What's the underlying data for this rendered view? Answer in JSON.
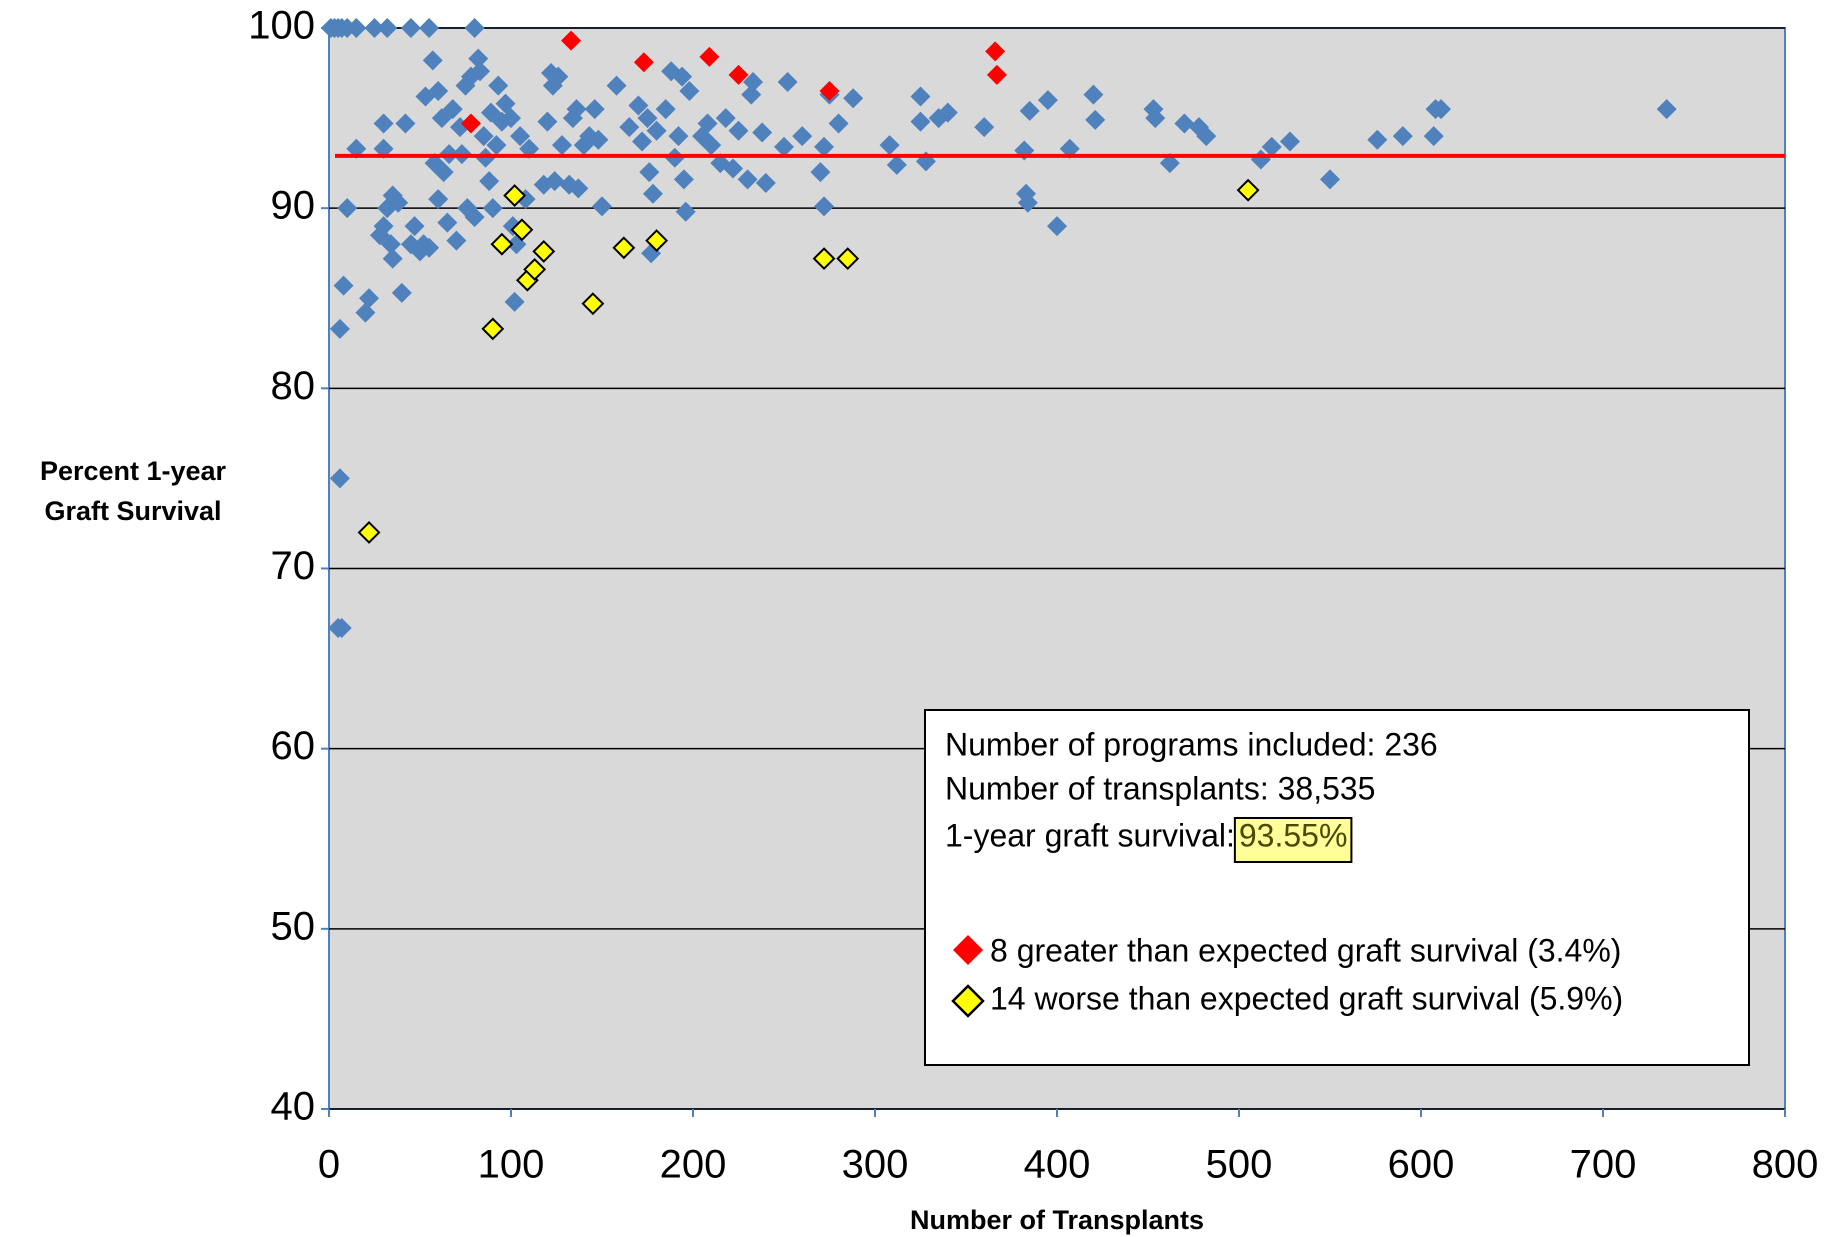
{
  "chart_data": {
    "type": "scatter",
    "y_label_lines": [
      "Percent 1-year",
      "Graft Survival"
    ],
    "x_label": "Number of Transplants",
    "xlim": [
      0,
      800
    ],
    "xticks": [
      0,
      100,
      200,
      300,
      400,
      500,
      600,
      700,
      800
    ],
    "ylim": [
      40,
      100
    ],
    "yticks": [
      40,
      50,
      60,
      70,
      80,
      90,
      100
    ],
    "grid": true,
    "reference_line": {
      "value": 92.9,
      "color": "#ff0000"
    },
    "annotation": {
      "lines": [
        "Number of programs included: 236",
        "Number of transplants: 38,535",
        "1-year graft survival: "
      ],
      "highlight": "93.55%"
    },
    "series": [
      {
        "color": "#4f81bd",
        "x": [
          1,
          3,
          5,
          7,
          10,
          15,
          25,
          32,
          45,
          55,
          80,
          5,
          7,
          6,
          6,
          8,
          20,
          22,
          40,
          10,
          15,
          30,
          30,
          28,
          30,
          32,
          34,
          35,
          35,
          38,
          42,
          45,
          47,
          50,
          52,
          53,
          55,
          57,
          58,
          60,
          60,
          62,
          63,
          65,
          66,
          68,
          70,
          72,
          73,
          75,
          76,
          78,
          80,
          82,
          83,
          85,
          86,
          88,
          89,
          90,
          92,
          93,
          95,
          97,
          100,
          101,
          102,
          103,
          105,
          108,
          110,
          118,
          120,
          122,
          123,
          124,
          126,
          128,
          132,
          134,
          136,
          137,
          140,
          143,
          146,
          148,
          150,
          158,
          165,
          170,
          172,
          175,
          176,
          177,
          178,
          180,
          185,
          188,
          190,
          192,
          194,
          195,
          196,
          198,
          205,
          208,
          210,
          215,
          218,
          222,
          225,
          230,
          232,
          233,
          238,
          240,
          250,
          252,
          260,
          270,
          272,
          272,
          275,
          280,
          288,
          308,
          312,
          325,
          325,
          328,
          335,
          340,
          360,
          382,
          383,
          384,
          385,
          395,
          400,
          407,
          420,
          421,
          453,
          454,
          462,
          470,
          478,
          482,
          512,
          518,
          528,
          550,
          576,
          590,
          607,
          608,
          611,
          735
        ],
        "values": [
          100,
          100,
          100,
          100,
          100,
          100,
          100,
          100,
          100,
          100,
          100,
          66.7,
          66.7,
          75,
          83.3,
          85.7,
          84.2,
          85,
          85.3,
          90,
          93.3,
          94.7,
          93.3,
          88.5,
          89,
          90,
          88,
          87.2,
          90.7,
          90.3,
          94.7,
          88,
          89,
          87.6,
          88,
          96.2,
          87.8,
          98.2,
          92.5,
          96.5,
          90.5,
          95,
          92,
          89.2,
          93,
          95.5,
          88.2,
          94.5,
          93,
          96.8,
          90,
          97.3,
          89.5,
          98.3,
          97.6,
          94,
          92.8,
          91.5,
          95.3,
          90,
          93.5,
          96.8,
          94.8,
          95.8,
          95,
          89,
          84.8,
          88,
          94,
          90.5,
          93.3,
          91.3,
          94.8,
          97.5,
          96.8,
          91.5,
          97.3,
          93.5,
          91.3,
          95,
          95.5,
          91.1,
          93.5,
          94,
          95.5,
          93.8,
          90.1,
          96.8,
          94.5,
          95.7,
          93.7,
          95,
          92,
          87.5,
          90.8,
          94.3,
          95.5,
          97.6,
          92.8,
          94,
          97.3,
          91.6,
          89.8,
          96.5,
          94,
          94.7,
          93.5,
          92.5,
          95,
          92.2,
          94.3,
          91.6,
          96.3,
          97,
          94.2,
          91.4,
          93.4,
          97,
          94,
          92,
          90.1,
          93.4,
          96.3,
          94.7,
          96.1,
          93.5,
          92.4,
          96.2,
          94.8,
          92.6,
          95,
          95.3,
          94.5,
          93.2,
          90.8,
          90.3,
          95.4,
          96,
          89,
          93.3,
          96.3,
          94.9,
          95.5,
          95,
          92.5,
          94.7,
          94.5,
          94,
          92.7,
          93.4,
          93.7,
          91.6,
          93.8,
          94,
          94,
          95.5,
          95.5,
          95.5
        ]
      },
      {
        "name": "8 greater than expected graft survival  (3.4%)",
        "color": "#ff0000",
        "x": [
          78,
          133,
          173,
          209,
          225,
          275,
          366,
          367
        ],
        "values": [
          94.7,
          99.3,
          98.1,
          98.4,
          97.4,
          96.5,
          98.7,
          97.4
        ]
      },
      {
        "name": "14 worse than expected graft survival  (5.9%)",
        "color": "#ffff00",
        "x": [
          22,
          90,
          95,
          102,
          106,
          109,
          113,
          118,
          145,
          162,
          180,
          272,
          285,
          505
        ],
        "values": [
          72,
          83.3,
          88,
          90.7,
          88.8,
          86,
          86.6,
          87.6,
          84.7,
          87.8,
          88.2,
          87.2,
          87.2,
          91
        ]
      }
    ]
  }
}
